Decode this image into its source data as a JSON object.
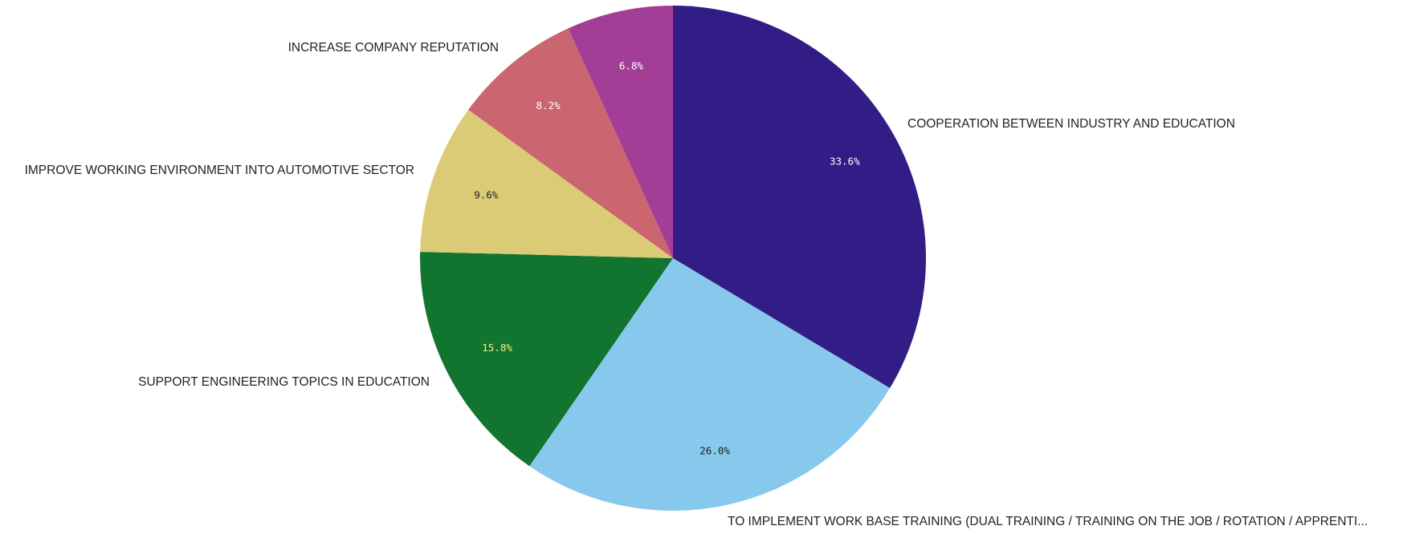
{
  "chart_data": {
    "type": "pie",
    "start_angle_deg": 0,
    "direction": "clockwise",
    "legend": "none",
    "slices": [
      {
        "label": "COOPERATION BETWEEN INDUSTRY AND EDUCATION",
        "value": 33.6,
        "display": "33.6%",
        "color": "#311d85",
        "label_color": "#ffffff"
      },
      {
        "label": "TO IMPLEMENT WORK BASE TRAINING (DUAL TRAINING / TRAINING ON THE JOB / ROTATION / APPRENTI...",
        "value": 26.0,
        "display": "26.0%",
        "color": "#87c9ec",
        "label_color": "#222222"
      },
      {
        "label": "SUPPORT ENGINEERING TOPICS IN EDUCATION",
        "value": 15.8,
        "display": "15.8%",
        "color": "#11742f",
        "label_color": "#f4f08a"
      },
      {
        "label": "IMPROVE WORKING ENVIRONMENT INTO AUTOMOTIVE SECTOR",
        "value": 9.6,
        "display": "9.6%",
        "color": "#dccb76",
        "label_color": "#222222"
      },
      {
        "label": "INCREASE COMPANY REPUTATION",
        "value": 8.2,
        "display": "8.2%",
        "color": "#cb6570",
        "label_color": "#ffffff"
      },
      {
        "label": "",
        "value": 6.8,
        "display": "6.8%",
        "color": "#a33e96",
        "label_color": "#ffffff"
      }
    ]
  }
}
